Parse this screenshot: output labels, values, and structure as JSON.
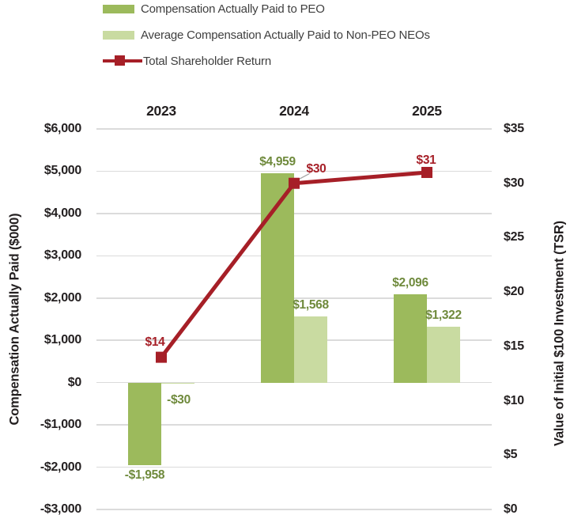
{
  "legend": {
    "items": [
      {
        "label": "Compensation Actually Paid to PEO",
        "swatch": "dark-green-square"
      },
      {
        "label": "Average Compensation Actually Paid to Non-PEO NEOs",
        "swatch": "light-green-square"
      },
      {
        "label": "Total Shareholder Return",
        "swatch": "red-line-with-square-marker"
      }
    ]
  },
  "colors": {
    "peo_bar": "#9CBA5C",
    "non_peo_bar": "#C9DBA1",
    "tsr_line": "#A61F27",
    "gridline": "#DBDBDB",
    "axis_text": "#231F20",
    "legend_text": "#3F3F3F",
    "green_data_label": "#6F8A3C",
    "leader_line": "#A6A6A6",
    "background": "#FFFFFF"
  },
  "chart_data": {
    "type": "bar",
    "subtype": "grouped-bar-plus-line-combo",
    "categories": [
      "2023",
      "2024",
      "2025"
    ],
    "series": [
      {
        "name": "Compensation Actually Paid to PEO",
        "kind": "bar",
        "axis": "left",
        "values": [
          -1958,
          4959,
          2096
        ],
        "labels": [
          "-$1,958",
          "$4,959",
          "$2,096"
        ]
      },
      {
        "name": "Average Compensation Actually Paid to Non-PEO NEOs",
        "kind": "bar",
        "axis": "left",
        "values": [
          -30,
          1568,
          1322
        ],
        "labels": [
          "-$30",
          "$1,568",
          "$1,322"
        ]
      },
      {
        "name": "Total Shareholder Return",
        "kind": "line",
        "axis": "right",
        "values": [
          14,
          30,
          31
        ],
        "labels": [
          "$14",
          "$30",
          "$31"
        ]
      }
    ],
    "left_axis": {
      "title": "Compensation Actually Paid ($000)",
      "min": -3000,
      "max": 6000,
      "step": 1000,
      "ticks": [
        {
          "value": 6000,
          "label": "$6,000"
        },
        {
          "value": 5000,
          "label": "$5,000"
        },
        {
          "value": 4000,
          "label": "$4,000"
        },
        {
          "value": 3000,
          "label": "$3,000"
        },
        {
          "value": 2000,
          "label": "$2,000"
        },
        {
          "value": 1000,
          "label": "$1,000"
        },
        {
          "value": 0,
          "label": "$0"
        },
        {
          "value": -1000,
          "label": "-$1,000"
        },
        {
          "value": -2000,
          "label": "-$2,000"
        },
        {
          "value": -3000,
          "label": "-$3,000"
        }
      ]
    },
    "right_axis": {
      "title": "Value of Initial $100 Investment (TSR)",
      "min": 0,
      "max": 35,
      "step": 5,
      "ticks": [
        {
          "value": 35,
          "label": "$35"
        },
        {
          "value": 30,
          "label": "$30"
        },
        {
          "value": 25,
          "label": "$25"
        },
        {
          "value": 20,
          "label": "$20"
        },
        {
          "value": 15,
          "label": "$15"
        },
        {
          "value": 10,
          "label": "$10"
        },
        {
          "value": 5,
          "label": "$5"
        },
        {
          "value": 0,
          "label": "$0"
        }
      ]
    },
    "grid": "horizontal gridlines every $1,000 of left axis",
    "legend_position": "top-left"
  }
}
